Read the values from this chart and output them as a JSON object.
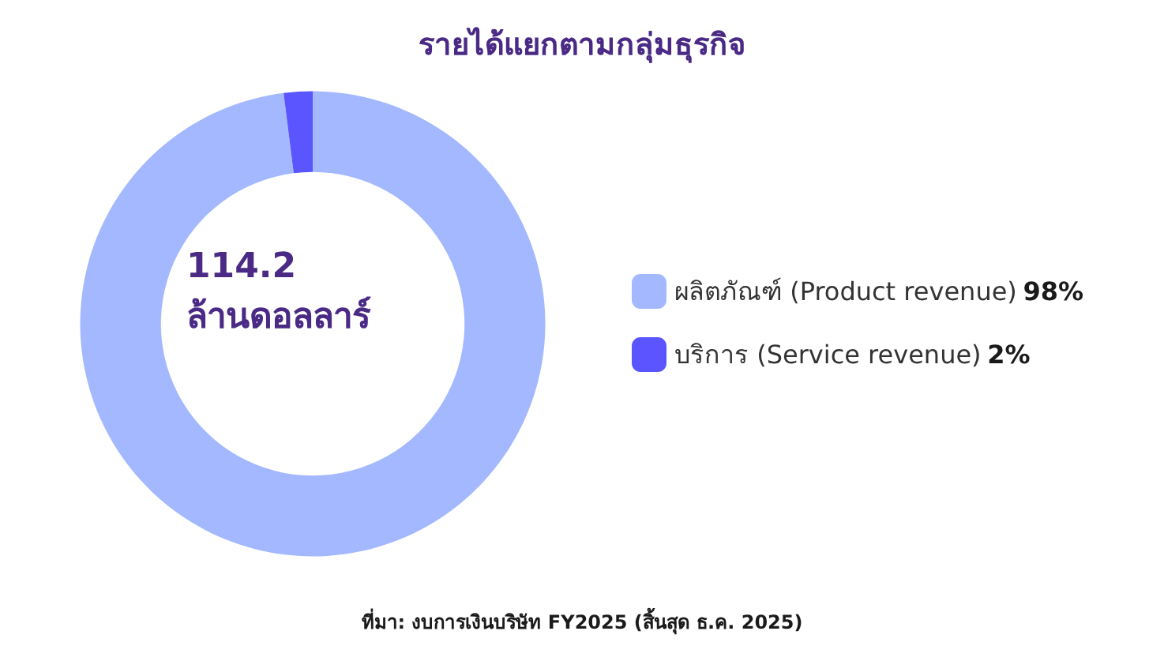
{
  "chart_data": {
    "type": "donut",
    "title": "รายได้แยกตามกลุ่มธุรกิจ",
    "categories": [
      "ผลิตภัณฑ์ (Product revenue)",
      "บริการ (Service revenue)"
    ],
    "values": [
      98,
      2
    ],
    "colors": [
      "#a3b8ff",
      "#5b55ff"
    ],
    "value_labels": [
      "98%",
      "2%"
    ],
    "legend": "right",
    "annotations": [
      "114.2",
      "ล้านดอลลาร์",
      "ที่มา: งบการเงินบริษัท FY2025 (สิ้นสุด ธ.ค. 2025)"
    ]
  }
}
